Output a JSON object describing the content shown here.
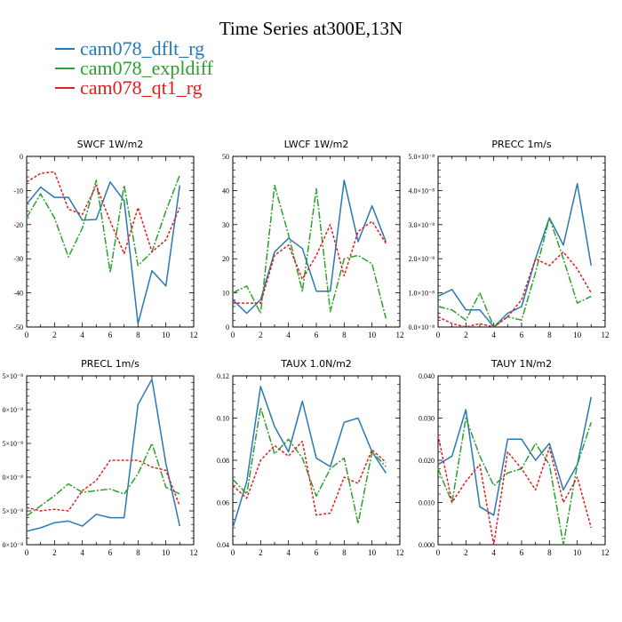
{
  "title": "Time Series at300E,13N",
  "legend": [
    {
      "label": "cam078_dflt_rg",
      "color": "#2878b4"
    },
    {
      "label": "cam078_expldiff",
      "color": "#2ca02c"
    },
    {
      "label": "cam078_qt1_rg",
      "color": "#e02020"
    }
  ],
  "chart_data": [
    {
      "type": "line",
      "title": "SWCF   1W/m2",
      "xlim": [
        0,
        12
      ],
      "xticks": [
        "0",
        "2",
        "4",
        "6",
        "8",
        "10",
        "12"
      ],
      "ylim": [
        -50,
        0
      ],
      "yticks": [
        {
          "v": 0,
          "label": "0"
        },
        {
          "v": -10,
          "label": "-10"
        },
        {
          "v": -20,
          "label": "-20"
        },
        {
          "v": -30,
          "label": "-30"
        },
        {
          "v": -40,
          "label": "-40"
        },
        {
          "v": -50,
          "label": "-50"
        }
      ],
      "x": [
        0,
        1,
        2,
        3,
        4,
        5,
        6,
        7,
        8,
        9,
        10,
        11
      ],
      "series": [
        {
          "name": "cam078_dflt_rg",
          "values": [
            -14,
            -9,
            -12,
            -12,
            -18.7,
            -18.5,
            -7.5,
            -13,
            -49,
            -33.5,
            -38,
            -8.5
          ]
        },
        {
          "name": "cam078_expldiff",
          "values": [
            -18,
            -11,
            -18,
            -29.5,
            -21,
            -7,
            -34,
            -8.5,
            -32,
            -28,
            -16,
            -5.5
          ]
        },
        {
          "name": "cam078_qt1_rg",
          "values": [
            -7.5,
            -5,
            -4.5,
            -15.5,
            -17,
            -8.5,
            -19,
            -28.5,
            -15,
            -28,
            -24.5,
            -15
          ]
        }
      ]
    },
    {
      "type": "line",
      "title": "LWCF   1W/m2",
      "xlim": [
        0,
        12
      ],
      "xticks": [
        "0",
        "2",
        "4",
        "6",
        "8",
        "10",
        "12"
      ],
      "ylim": [
        0,
        50
      ],
      "yticks": [
        {
          "v": 0,
          "label": "0"
        },
        {
          "v": 10,
          "label": "10"
        },
        {
          "v": 20,
          "label": "20"
        },
        {
          "v": 30,
          "label": "30"
        },
        {
          "v": 40,
          "label": "40"
        },
        {
          "v": 50,
          "label": "50"
        }
      ],
      "x": [
        0,
        1,
        2,
        3,
        4,
        5,
        6,
        7,
        8,
        9,
        10,
        11
      ],
      "series": [
        {
          "name": "cam078_dflt_rg",
          "values": [
            8,
            4,
            8,
            22,
            26,
            23,
            10.5,
            10.5,
            43,
            25,
            35.5,
            25
          ]
        },
        {
          "name": "cam078_expldiff",
          "values": [
            10,
            12,
            4,
            41.5,
            27,
            10.5,
            40.5,
            4.5,
            20,
            21,
            18.5,
            2.5
          ]
        },
        {
          "name": "cam078_qt1_rg",
          "values": [
            7,
            7,
            7,
            21,
            24,
            14,
            21,
            30,
            15,
            28,
            31,
            24.5
          ]
        }
      ]
    },
    {
      "type": "line",
      "title": "PRECC   1m/s",
      "xlim": [
        0,
        12
      ],
      "xticks": [
        "0",
        "2",
        "4",
        "6",
        "8",
        "10",
        "12"
      ],
      "ylim": [
        0,
        5e-08
      ],
      "yticks": [
        {
          "v": 0,
          "label": "0.0×10⁻⁸"
        },
        {
          "v": 1e-08,
          "label": "1.0×10⁻⁸"
        },
        {
          "v": 2e-08,
          "label": "2.0×10⁻⁸"
        },
        {
          "v": 3e-08,
          "label": "3.0×10⁻⁸"
        },
        {
          "v": 4e-08,
          "label": "4.0×10⁻⁸"
        },
        {
          "v": 5e-08,
          "label": "5.0×10⁻⁸"
        }
      ],
      "x": [
        0,
        1,
        2,
        3,
        4,
        5,
        6,
        7,
        8,
        9,
        10,
        11
      ],
      "series": [
        {
          "name": "cam078_dflt_rg",
          "values": [
            9e-09,
            1.1e-08,
            5e-09,
            5e-09,
            0,
            4e-09,
            6e-09,
            2e-08,
            3.2e-08,
            2.4e-08,
            4.2e-08,
            1.8e-08
          ]
        },
        {
          "name": "cam078_expldiff",
          "values": [
            6e-09,
            5e-09,
            2e-09,
            1e-08,
            0,
            3e-09,
            2e-09,
            1.6e-08,
            3.2e-08,
            2e-08,
            7e-09,
            9e-09
          ]
        },
        {
          "name": "cam078_qt1_rg",
          "values": [
            3e-09,
            1e-09,
            0,
            1e-09,
            0,
            3e-09,
            8e-09,
            2e-08,
            1.8e-08,
            2.2e-08,
            1.7e-08,
            1e-08
          ]
        }
      ]
    },
    {
      "type": "line",
      "title": "PRECL   1m/s",
      "xlim": [
        0,
        12
      ],
      "xticks": [
        "0",
        "2",
        "4",
        "6",
        "8",
        "10",
        "12"
      ],
      "ylim": [
        0,
        1
      ],
      "yticks": [
        {
          "v": 0,
          "label": "0×10⁻⁸"
        },
        {
          "v": 0.2,
          "label": "5×10⁻⁸"
        },
        {
          "v": 0.4,
          "label": "0×10⁻⁸"
        },
        {
          "v": 0.6,
          "label": "5×10⁻⁸"
        },
        {
          "v": 0.8,
          "label": "0×10⁻⁸"
        },
        {
          "v": 1.0,
          "label": "5×10⁻⁸"
        }
      ],
      "x": [
        0,
        1,
        2,
        3,
        4,
        5,
        6,
        7,
        8,
        9,
        10,
        11
      ],
      "series": [
        {
          "name": "cam078_dflt_rg",
          "values": [
            0.08,
            0.1,
            0.13,
            0.14,
            0.11,
            0.18,
            0.16,
            0.16,
            0.83,
            0.98,
            0.48,
            0.11
          ]
        },
        {
          "name": "cam078_expldiff",
          "values": [
            0.17,
            0.23,
            0.29,
            0.36,
            0.31,
            0.32,
            0.33,
            0.3,
            0.42,
            0.6,
            0.34,
            0.3
          ]
        },
        {
          "name": "cam078_qt1_rg",
          "values": [
            0.22,
            0.2,
            0.21,
            0.2,
            0.32,
            0.38,
            0.5,
            0.5,
            0.5,
            0.46,
            0.44,
            0.23
          ]
        }
      ]
    },
    {
      "type": "line",
      "title": "TAUX   1.0N/m2",
      "xlim": [
        0,
        12
      ],
      "xticks": [
        "0",
        "2",
        "4",
        "6",
        "8",
        "10",
        "12"
      ],
      "ylim": [
        0.04,
        0.12
      ],
      "yticks": [
        {
          "v": 0.04,
          "label": "0.04"
        },
        {
          "v": 0.06,
          "label": "0.06"
        },
        {
          "v": 0.08,
          "label": "0.08"
        },
        {
          "v": 0.1,
          "label": "0.10"
        },
        {
          "v": 0.12,
          "label": "0.12"
        }
      ],
      "x": [
        0,
        1,
        2,
        3,
        4,
        5,
        6,
        7,
        8,
        9,
        10,
        11
      ],
      "series": [
        {
          "name": "cam078_dflt_rg",
          "values": [
            0.048,
            0.07,
            0.115,
            0.096,
            0.084,
            0.108,
            0.081,
            0.077,
            0.098,
            0.1,
            0.084,
            0.074
          ]
        },
        {
          "name": "cam078_expldiff",
          "values": [
            0.071,
            0.064,
            0.105,
            0.083,
            0.09,
            0.081,
            0.063,
            0.076,
            0.081,
            0.05,
            0.084,
            0.077
          ]
        },
        {
          "name": "cam078_qt1_rg",
          "values": [
            0.068,
            0.062,
            0.08,
            0.087,
            0.082,
            0.089,
            0.054,
            0.055,
            0.072,
            0.069,
            0.085,
            0.079
          ]
        }
      ]
    },
    {
      "type": "line",
      "title": "TAUY   1N/m2",
      "xlim": [
        0,
        12
      ],
      "xticks": [
        "0",
        "2",
        "4",
        "6",
        "8",
        "10",
        "12"
      ],
      "ylim": [
        0,
        0.04
      ],
      "yticks": [
        {
          "v": 0,
          "label": "0.000"
        },
        {
          "v": 0.01,
          "label": "0.010"
        },
        {
          "v": 0.02,
          "label": "0.020"
        },
        {
          "v": 0.03,
          "label": "0.030"
        },
        {
          "v": 0.04,
          "label": "0.040"
        }
      ],
      "x": [
        0,
        1,
        2,
        3,
        4,
        5,
        6,
        7,
        8,
        9,
        10,
        11
      ],
      "series": [
        {
          "name": "cam078_dflt_rg",
          "values": [
            0.019,
            0.021,
            0.032,
            0.009,
            0.007,
            0.025,
            0.025,
            0.02,
            0.024,
            0.013,
            0.019,
            0.035
          ]
        },
        {
          "name": "cam078_expldiff",
          "values": [
            0.018,
            0.01,
            0.03,
            0.021,
            0.014,
            0.017,
            0.018,
            0.024,
            0.019,
            0,
            0.019,
            0.029
          ]
        },
        {
          "name": "cam078_qt1_rg",
          "values": [
            0.026,
            0.01,
            0.015,
            0.019,
            0,
            0.022,
            0.018,
            0.013,
            0.023,
            0.01,
            0.016,
            0.004
          ]
        }
      ]
    }
  ]
}
